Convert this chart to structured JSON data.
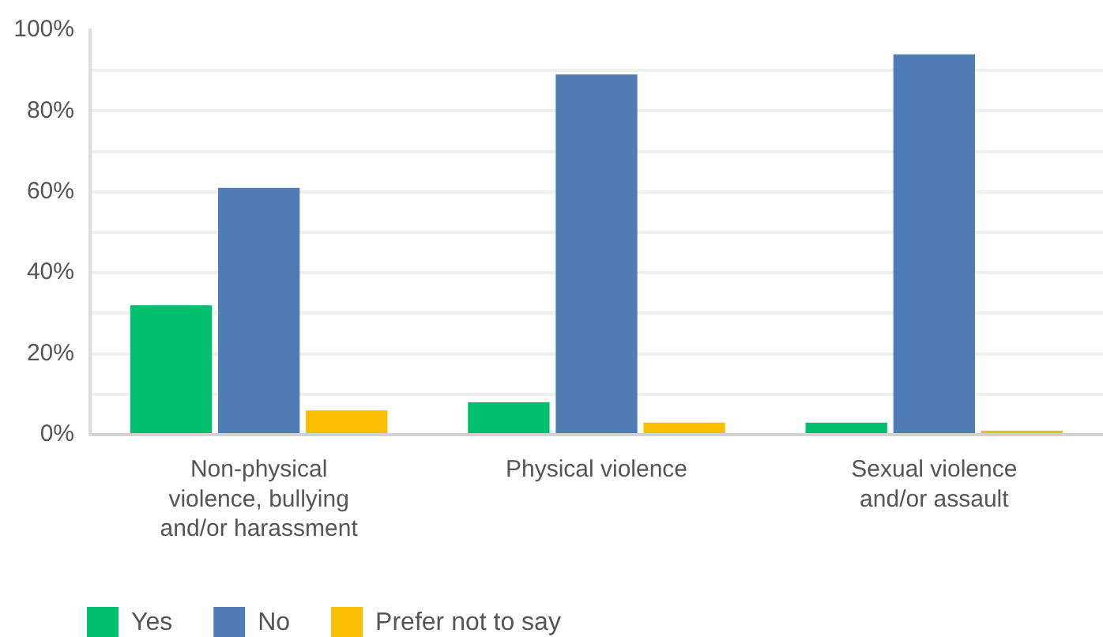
{
  "chart_data": {
    "type": "bar",
    "categories": [
      "Non-physical violence, bullying and/or harassment",
      "Physical violence",
      "Sexual violence and/or assault"
    ],
    "series": [
      {
        "name": "Yes",
        "color": "#00bf6f",
        "values": [
          32,
          8,
          3
        ]
      },
      {
        "name": "No",
        "color": "#507cb6",
        "values": [
          61,
          89,
          94
        ]
      },
      {
        "name": "Prefer not to say",
        "color": "#f9be00",
        "values": [
          6,
          3,
          1
        ]
      }
    ],
    "ylim": [
      0,
      100
    ],
    "yticks": [
      {
        "value": 0,
        "label": "0%"
      },
      {
        "value": 10,
        "label": null
      },
      {
        "value": 20,
        "label": "20%"
      },
      {
        "value": 30,
        "label": null
      },
      {
        "value": 40,
        "label": "40%"
      },
      {
        "value": 50,
        "label": null
      },
      {
        "value": 60,
        "label": "60%"
      },
      {
        "value": 70,
        "label": null
      },
      {
        "value": 80,
        "label": "80%"
      },
      {
        "value": 90,
        "label": null
      },
      {
        "value": 100,
        "label": "100%"
      }
    ],
    "grid": "y",
    "legend": "bottom left"
  }
}
